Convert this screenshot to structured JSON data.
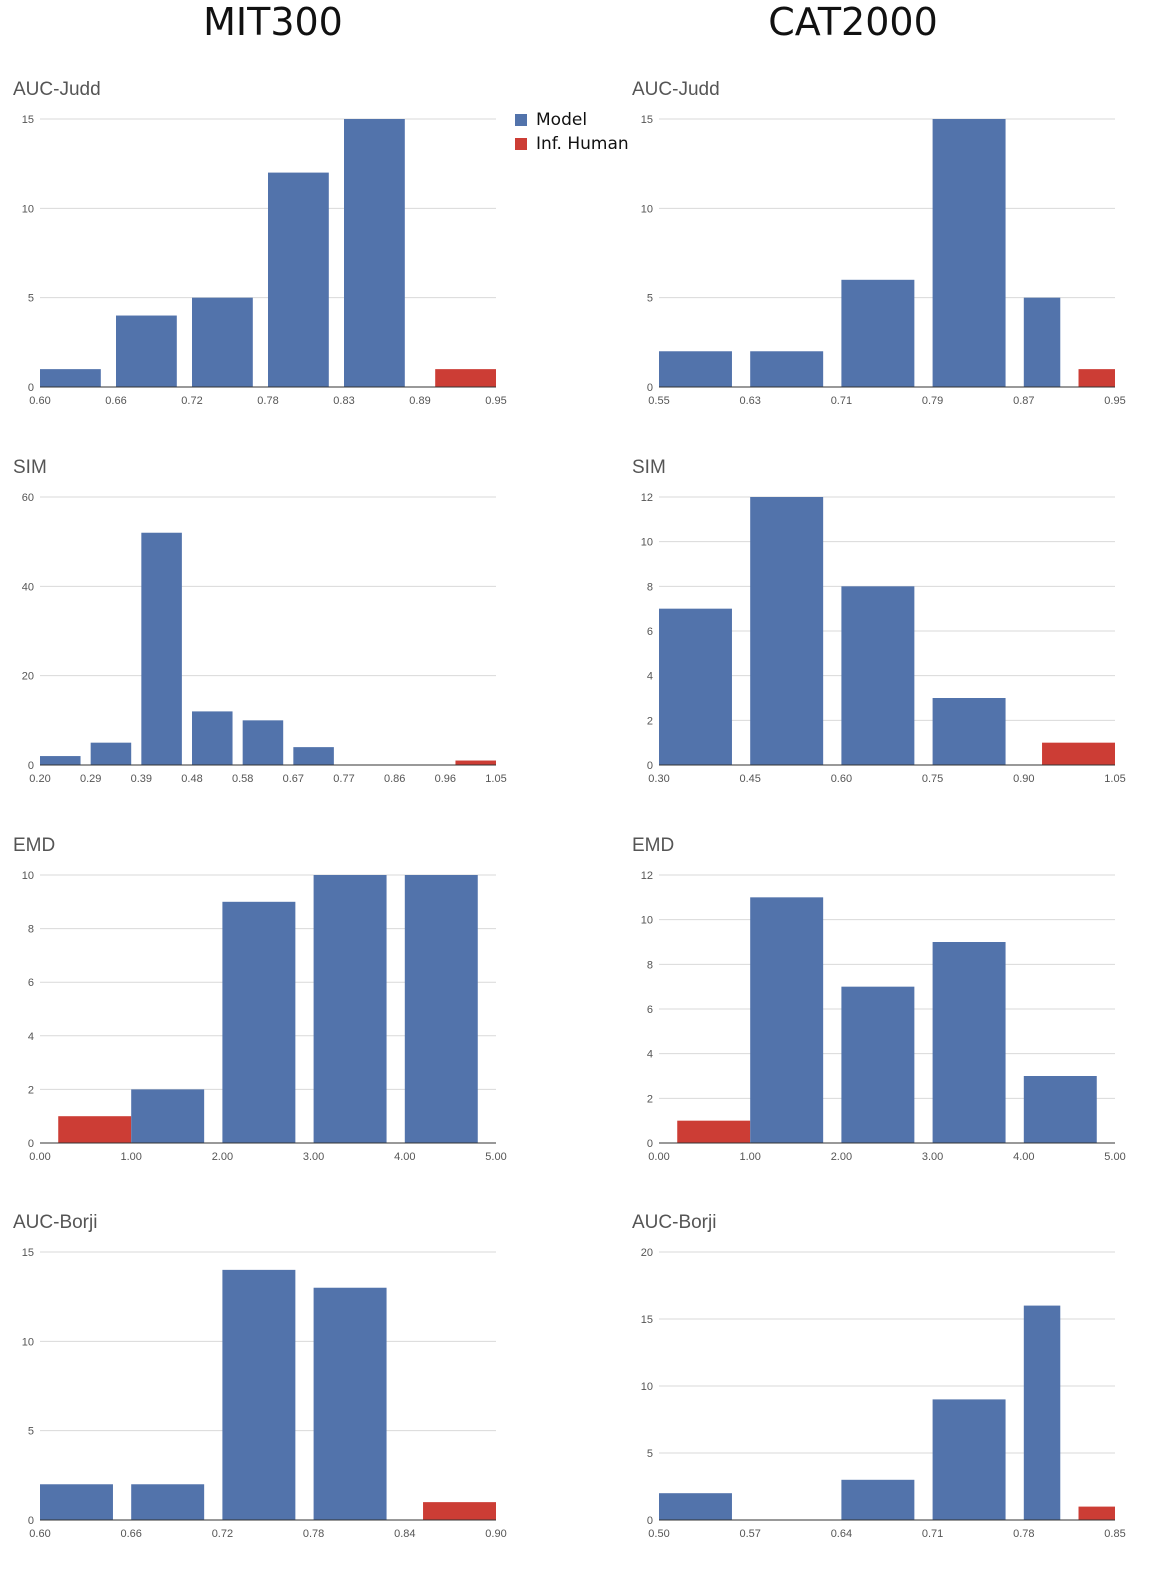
{
  "columns": [
    {
      "title": "MIT300"
    },
    {
      "title": "CAT2000"
    }
  ],
  "colors": {
    "model": "#5273ab",
    "human": "#cc3d35"
  },
  "legend": {
    "model": "Model",
    "human": "Inf. Human"
  },
  "chart_data": [
    {
      "type": "bar",
      "title": "AUC-Judd",
      "column": 0,
      "row": 0,
      "xticks": [
        "0.60",
        "0.66",
        "0.72",
        "0.78",
        "0.83",
        "0.89",
        "0.95"
      ],
      "ylim": [
        0,
        15
      ],
      "yticks": [
        0,
        5,
        10,
        15
      ],
      "bars": [
        {
          "bin": 0,
          "value": 1,
          "series": "model"
        },
        {
          "bin": 1,
          "value": 4,
          "series": "model"
        },
        {
          "bin": 2,
          "value": 5,
          "series": "model"
        },
        {
          "bin": 3,
          "value": 12,
          "series": "model"
        },
        {
          "bin": 4,
          "value": 15,
          "series": "model"
        },
        {
          "bin": 5,
          "value": 1,
          "series": "human"
        }
      ]
    },
    {
      "type": "bar",
      "title": "AUC-Judd",
      "column": 1,
      "row": 0,
      "xticks": [
        "0.55",
        "0.63",
        "0.71",
        "0.79",
        "0.87",
        "0.95"
      ],
      "ylim": [
        0,
        15
      ],
      "yticks": [
        0,
        5,
        10,
        15
      ],
      "bars": [
        {
          "bin": 0,
          "value": 2,
          "series": "model"
        },
        {
          "bin": 1,
          "value": 2,
          "series": "model"
        },
        {
          "bin": 2,
          "value": 6,
          "series": "model"
        },
        {
          "bin": 3,
          "value": 15,
          "series": "model"
        },
        {
          "bin": 4,
          "value": 5,
          "series": "model"
        },
        {
          "bin": 4,
          "value": 1,
          "series": "human"
        }
      ]
    },
    {
      "type": "bar",
      "title": "SIM",
      "column": 0,
      "row": 1,
      "xticks": [
        "0.20",
        "0.29",
        "0.39",
        "0.48",
        "0.58",
        "0.67",
        "0.77",
        "0.86",
        "0.96",
        "1.05"
      ],
      "ylim": [
        0,
        60
      ],
      "yticks": [
        0,
        20,
        40,
        60
      ],
      "bars": [
        {
          "bin": 0,
          "value": 2,
          "series": "model"
        },
        {
          "bin": 1,
          "value": 5,
          "series": "model"
        },
        {
          "bin": 2,
          "value": 52,
          "series": "model"
        },
        {
          "bin": 3,
          "value": 12,
          "series": "model"
        },
        {
          "bin": 4,
          "value": 10,
          "series": "model"
        },
        {
          "bin": 5,
          "value": 4,
          "series": "model"
        },
        {
          "bin": 8,
          "value": 1,
          "series": "human"
        }
      ]
    },
    {
      "type": "bar",
      "title": "SIM",
      "column": 1,
      "row": 1,
      "xticks": [
        "0.30",
        "0.45",
        "0.60",
        "0.75",
        "0.90",
        "1.05"
      ],
      "ylim": [
        0,
        12
      ],
      "yticks": [
        0,
        2,
        4,
        6,
        8,
        10,
        12
      ],
      "bars": [
        {
          "bin": 0,
          "value": 7,
          "series": "model"
        },
        {
          "bin": 1,
          "value": 12,
          "series": "model"
        },
        {
          "bin": 2,
          "value": 8,
          "series": "model"
        },
        {
          "bin": 3,
          "value": 3,
          "series": "model"
        },
        {
          "bin": 4,
          "value": 1,
          "series": "human"
        }
      ]
    },
    {
      "type": "bar",
      "title": "EMD",
      "column": 0,
      "row": 2,
      "xticks": [
        "0.00",
        "1.00",
        "2.00",
        "3.00",
        "4.00",
        "5.00"
      ],
      "ylim": [
        0,
        10
      ],
      "yticks": [
        0,
        2,
        4,
        6,
        8,
        10
      ],
      "bars": [
        {
          "bin": 0,
          "value": 1,
          "series": "human"
        },
        {
          "bin": 1,
          "value": 2,
          "series": "model"
        },
        {
          "bin": 2,
          "value": 9,
          "series": "model"
        },
        {
          "bin": 3,
          "value": 10,
          "series": "model"
        },
        {
          "bin": 4,
          "value": 10,
          "series": "model"
        }
      ]
    },
    {
      "type": "bar",
      "title": "EMD",
      "column": 1,
      "row": 2,
      "xticks": [
        "0.00",
        "1.00",
        "2.00",
        "3.00",
        "4.00",
        "5.00"
      ],
      "ylim": [
        0,
        12
      ],
      "yticks": [
        0,
        2,
        4,
        6,
        8,
        10,
        12
      ],
      "bars": [
        {
          "bin": 0,
          "value": 1,
          "series": "human"
        },
        {
          "bin": 1,
          "value": 11,
          "series": "model"
        },
        {
          "bin": 2,
          "value": 7,
          "series": "model"
        },
        {
          "bin": 3,
          "value": 9,
          "series": "model"
        },
        {
          "bin": 4,
          "value": 3,
          "series": "model"
        }
      ]
    },
    {
      "type": "bar",
      "title": "AUC-Borji",
      "column": 0,
      "row": 3,
      "xticks": [
        "0.60",
        "0.66",
        "0.72",
        "0.78",
        "0.84",
        "0.90"
      ],
      "ylim": [
        0,
        15
      ],
      "yticks": [
        0,
        5,
        10,
        15
      ],
      "bars": [
        {
          "bin": 0,
          "value": 2,
          "series": "model"
        },
        {
          "bin": 1,
          "value": 2,
          "series": "model"
        },
        {
          "bin": 2,
          "value": 14,
          "series": "model"
        },
        {
          "bin": 3,
          "value": 13,
          "series": "model"
        },
        {
          "bin": 4,
          "value": 1,
          "series": "human"
        }
      ]
    },
    {
      "type": "bar",
      "title": "AUC-Borji",
      "column": 1,
      "row": 3,
      "xticks": [
        "0.50",
        "0.57",
        "0.64",
        "0.71",
        "0.78",
        "0.85"
      ],
      "ylim": [
        0,
        20
      ],
      "yticks": [
        0,
        5,
        10,
        15,
        20
      ],
      "bars": [
        {
          "bin": 0,
          "value": 2,
          "series": "model"
        },
        {
          "bin": 2,
          "value": 3,
          "series": "model"
        },
        {
          "bin": 3,
          "value": 9,
          "series": "model"
        },
        {
          "bin": 4,
          "value": 16,
          "series": "model"
        },
        {
          "bin": 4,
          "value": 1,
          "series": "human"
        }
      ]
    }
  ]
}
